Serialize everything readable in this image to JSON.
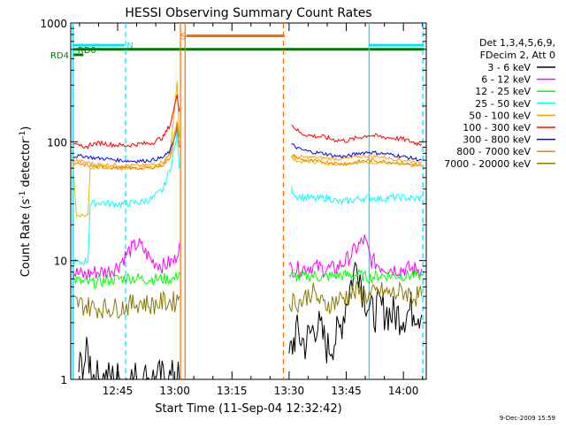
{
  "chart_data": {
    "type": "line",
    "title": "HESSI Observing Summary Count Rates",
    "xlabel": "Start Time (11-Sep-04 12:32:42)",
    "ylabel_main": "Count Rate (s",
    "ylabel_sup1": "-1",
    "ylabel_mid": " detector",
    "ylabel_sup2": "-1",
    "ylabel_end": ")",
    "footer": "9-Dec-2009 15:59",
    "x_range_min": [
      12.55,
      14.1
    ],
    "y_range": [
      1,
      1000
    ],
    "y_scale": "log",
    "x_ticks": [
      {
        "value": 12.75,
        "label": "12:45"
      },
      {
        "value": 13.0,
        "label": "13:00"
      },
      {
        "value": 13.25,
        "label": "13:15"
      },
      {
        "value": 13.5,
        "label": "13:30"
      },
      {
        "value": 13.75,
        "label": "13:45"
      },
      {
        "value": 14.0,
        "label": "14:00"
      }
    ],
    "y_ticks": [
      {
        "value": 1,
        "label": "1"
      },
      {
        "value": 10,
        "label": "10"
      },
      {
        "value": 100,
        "label": "100"
      },
      {
        "value": 1000,
        "label": "1000"
      }
    ],
    "legend_header": [
      "Det 1,3,4,5,6,9,",
      "FDecim 2, Att 0"
    ],
    "legend_position": "right",
    "series": [
      {
        "name": "3 - 6 keV",
        "color": "#000000",
        "seg1": [
          [
            12.58,
            1.2
          ],
          [
            12.62,
            1.6
          ],
          [
            12.65,
            1.0
          ],
          [
            12.7,
            1.0
          ],
          [
            12.8,
            1.0
          ],
          [
            12.9,
            1.0
          ],
          [
            13.0,
            1.0
          ],
          [
            13.02,
            1.0
          ]
        ],
        "seg2": [
          [
            13.5,
            1.5
          ],
          [
            13.53,
            2.5
          ],
          [
            13.57,
            2.0
          ],
          [
            13.62,
            3.0
          ],
          [
            13.67,
            1.8
          ],
          [
            13.72,
            2.5
          ],
          [
            13.76,
            5.5
          ],
          [
            13.8,
            10.0
          ],
          [
            13.82,
            6.0
          ],
          [
            13.86,
            3.5
          ],
          [
            13.9,
            4.0
          ],
          [
            13.95,
            3.5
          ],
          [
            14.0,
            3.5
          ],
          [
            14.05,
            4.0
          ],
          [
            14.08,
            3.5
          ]
        ]
      },
      {
        "name": "6 - 12 keV",
        "color": "#ff00ff",
        "seg1": [
          [
            12.555,
            8
          ],
          [
            12.6,
            7.5
          ],
          [
            12.65,
            8
          ],
          [
            12.7,
            8
          ],
          [
            12.75,
            9
          ],
          [
            12.8,
            12
          ],
          [
            12.84,
            14
          ],
          [
            12.9,
            10
          ],
          [
            12.95,
            9
          ],
          [
            13.0,
            10
          ],
          [
            13.02,
            14
          ]
        ],
        "seg2": [
          [
            13.5,
            8.5
          ],
          [
            13.55,
            8.5
          ],
          [
            13.6,
            9
          ],
          [
            13.65,
            8.5
          ],
          [
            13.7,
            8.5
          ],
          [
            13.75,
            10
          ],
          [
            13.8,
            13
          ],
          [
            13.83,
            15
          ],
          [
            13.86,
            10
          ],
          [
            13.9,
            9
          ],
          [
            13.95,
            8.5
          ],
          [
            14.0,
            8.5
          ],
          [
            14.05,
            8.5
          ],
          [
            14.08,
            8.5
          ]
        ]
      },
      {
        "name": "12 - 25 keV",
        "color": "#00ff00",
        "seg1": [
          [
            12.555,
            7
          ],
          [
            12.6,
            6.5
          ],
          [
            12.65,
            6.5
          ],
          [
            12.7,
            6.8
          ],
          [
            12.75,
            7
          ],
          [
            12.8,
            7.2
          ],
          [
            12.85,
            7
          ],
          [
            12.9,
            7
          ],
          [
            12.95,
            7
          ],
          [
            13.0,
            7
          ],
          [
            13.02,
            8
          ]
        ],
        "seg2": [
          [
            13.5,
            7.5
          ],
          [
            13.55,
            7.2
          ],
          [
            13.6,
            7.5
          ],
          [
            13.65,
            7.2
          ],
          [
            13.7,
            7.5
          ],
          [
            13.75,
            7.5
          ],
          [
            13.8,
            7.6
          ],
          [
            13.85,
            7.2
          ],
          [
            13.9,
            7.5
          ],
          [
            13.95,
            7.5
          ],
          [
            14.0,
            7.5
          ],
          [
            14.05,
            7.5
          ],
          [
            14.08,
            7.5
          ]
        ]
      },
      {
        "name": "25 - 50 keV",
        "color": "#00ffff",
        "seg1": [
          [
            12.555,
            10
          ],
          [
            12.58,
            9.5
          ],
          [
            12.62,
            10
          ],
          [
            12.63,
            30
          ],
          [
            12.68,
            31
          ],
          [
            12.72,
            30
          ],
          [
            12.78,
            30
          ],
          [
            12.85,
            31
          ],
          [
            12.9,
            33
          ],
          [
            12.95,
            40
          ],
          [
            12.98,
            60
          ],
          [
            13.0,
            90
          ],
          [
            13.01,
            120
          ],
          [
            13.02,
            60
          ]
        ],
        "seg2": [
          [
            13.51,
            40
          ],
          [
            13.53,
            35
          ],
          [
            13.57,
            34
          ],
          [
            13.62,
            33
          ],
          [
            13.67,
            34
          ],
          [
            13.72,
            31
          ],
          [
            13.77,
            32
          ],
          [
            13.8,
            33
          ],
          [
            13.85,
            34
          ],
          [
            13.9,
            33
          ],
          [
            13.95,
            34
          ],
          [
            14.0,
            34
          ],
          [
            14.05,
            33
          ],
          [
            14.08,
            34
          ]
        ]
      },
      {
        "name": "50 - 100 keV",
        "color": "#ffa000",
        "seg1": [
          [
            12.555,
            70
          ],
          [
            12.6,
            68
          ],
          [
            12.65,
            65
          ],
          [
            12.7,
            64
          ],
          [
            12.75,
            64
          ],
          [
            12.8,
            63
          ],
          [
            12.85,
            63
          ],
          [
            12.9,
            64
          ],
          [
            12.95,
            68
          ],
          [
            12.98,
            80
          ],
          [
            13.0,
            120
          ],
          [
            13.01,
            150
          ],
          [
            13.02,
            110
          ]
        ],
        "seg2": [
          [
            13.51,
            75
          ],
          [
            13.55,
            74
          ],
          [
            13.6,
            74
          ],
          [
            13.65,
            73
          ],
          [
            13.7,
            72
          ],
          [
            13.75,
            72
          ],
          [
            13.8,
            75
          ],
          [
            13.85,
            76
          ],
          [
            13.9,
            75
          ],
          [
            13.95,
            72
          ],
          [
            14.0,
            70
          ],
          [
            14.05,
            68
          ],
          [
            14.08,
            67
          ]
        ]
      },
      {
        "name": "100 - 300 keV",
        "color": "#ff0000",
        "seg1": [
          [
            12.555,
            100
          ],
          [
            12.58,
            98
          ],
          [
            12.6,
            85
          ],
          [
            12.63,
            95
          ],
          [
            12.68,
            98
          ],
          [
            12.72,
            95
          ],
          [
            12.78,
            93
          ],
          [
            12.85,
            96
          ],
          [
            12.9,
            98
          ],
          [
            12.95,
            110
          ],
          [
            12.98,
            140
          ],
          [
            13.0,
            200
          ],
          [
            13.01,
            260
          ],
          [
            13.02,
            180
          ]
        ],
        "seg2": [
          [
            13.51,
            140
          ],
          [
            13.55,
            118
          ],
          [
            13.6,
            112
          ],
          [
            13.65,
            110
          ],
          [
            13.7,
            104
          ],
          [
            13.75,
            102
          ],
          [
            13.8,
            108
          ],
          [
            13.85,
            114
          ],
          [
            13.9,
            110
          ],
          [
            13.95,
            108
          ],
          [
            14.0,
            105
          ],
          [
            14.05,
            98
          ],
          [
            14.08,
            96
          ]
        ]
      },
      {
        "name": "300 - 800 keV",
        "color": "#0000ff",
        "seg1": [
          [
            12.555,
            75
          ],
          [
            12.6,
            76
          ],
          [
            12.65,
            73
          ],
          [
            12.7,
            72
          ],
          [
            12.75,
            70
          ],
          [
            12.8,
            69
          ],
          [
            12.85,
            69
          ],
          [
            12.9,
            70
          ],
          [
            12.95,
            74
          ],
          [
            12.98,
            84
          ],
          [
            13.0,
            110
          ],
          [
            13.01,
            140
          ],
          [
            13.02,
            90
          ]
        ],
        "seg2": [
          [
            13.51,
            95
          ],
          [
            13.55,
            86
          ],
          [
            13.6,
            82
          ],
          [
            13.65,
            80
          ],
          [
            13.7,
            76
          ],
          [
            13.75,
            75
          ],
          [
            13.8,
            80
          ],
          [
            13.85,
            82
          ],
          [
            13.9,
            80
          ],
          [
            13.95,
            78
          ],
          [
            14.0,
            75
          ],
          [
            14.05,
            72
          ],
          [
            14.08,
            70
          ]
        ]
      },
      {
        "name": "800 - 7000 keV",
        "color": "#ff8000",
        "seg1": [
          [
            12.555,
            65
          ],
          [
            12.6,
            64
          ],
          [
            12.65,
            62
          ],
          [
            12.7,
            61
          ],
          [
            12.75,
            60
          ],
          [
            12.8,
            60
          ],
          [
            12.85,
            60
          ],
          [
            12.9,
            61
          ],
          [
            12.95,
            64
          ],
          [
            12.98,
            74
          ],
          [
            13.0,
            110
          ],
          [
            13.01,
            140
          ],
          [
            13.02,
            90
          ]
        ],
        "seg2": [
          [
            13.51,
            78
          ],
          [
            13.55,
            71
          ],
          [
            13.6,
            69
          ],
          [
            13.65,
            68
          ],
          [
            13.7,
            66
          ],
          [
            13.75,
            65
          ],
          [
            13.8,
            68
          ],
          [
            13.85,
            70
          ],
          [
            13.9,
            69
          ],
          [
            13.95,
            67
          ],
          [
            14.0,
            66
          ],
          [
            14.05,
            64
          ],
          [
            14.08,
            63
          ]
        ]
      },
      {
        "name": "7000 - 20000 keV",
        "color": "#8c7a00",
        "seg1": [
          [
            12.555,
            4.5
          ],
          [
            12.6,
            4.2
          ],
          [
            12.65,
            4.0
          ],
          [
            12.7,
            4.0
          ],
          [
            12.75,
            4.0
          ],
          [
            12.8,
            4.2
          ],
          [
            12.85,
            4.5
          ],
          [
            12.9,
            4.2
          ],
          [
            12.95,
            4.5
          ],
          [
            13.0,
            4.5
          ],
          [
            13.02,
            5
          ]
        ],
        "seg2": [
          [
            13.5,
            4.5
          ],
          [
            13.55,
            4.5
          ],
          [
            13.6,
            5.5
          ],
          [
            13.65,
            4.2
          ],
          [
            13.7,
            4.5
          ],
          [
            13.75,
            5
          ],
          [
            13.8,
            5.5
          ],
          [
            13.85,
            5
          ],
          [
            13.9,
            5.5
          ],
          [
            13.95,
            5.2
          ],
          [
            14.0,
            5.5
          ],
          [
            14.05,
            5
          ],
          [
            14.08,
            5
          ]
        ]
      }
    ],
    "extra_yellow": {
      "color": "#d4c000",
      "seg1": [
        [
          12.555,
          65
        ],
        [
          12.57,
          24
        ],
        [
          12.62,
          24
        ],
        [
          12.63,
          60
        ],
        [
          12.7,
          62
        ],
        [
          12.8,
          60
        ],
        [
          12.9,
          60
        ],
        [
          12.95,
          64
        ],
        [
          12.98,
          80
        ],
        [
          13.0,
          200
        ],
        [
          13.01,
          330
        ],
        [
          13.02,
          110
        ]
      ],
      "seg2": [
        [
          13.51,
          72
        ],
        [
          13.55,
          68
        ],
        [
          13.6,
          68
        ],
        [
          13.7,
          65
        ],
        [
          13.8,
          67
        ],
        [
          13.9,
          67
        ],
        [
          14.0,
          64
        ],
        [
          14.08,
          62
        ]
      ]
    },
    "flags": [
      {
        "label": "N",
        "color": "#00e0ff",
        "y": 650,
        "segments": [
          [
            12.555,
            12.78
          ],
          [
            13.85,
            14.09
          ]
        ]
      },
      {
        "label": "S",
        "color": "#ff6a00",
        "y": 780,
        "segments": [
          [
            13.05,
            13.48
          ]
        ]
      },
      {
        "label": "RD0",
        "color": "#007800",
        "y": 600,
        "segments": [
          [
            12.555,
            12.57
          ],
          [
            12.57,
            14.09
          ]
        ]
      },
      {
        "label": "RD4",
        "color": "#007800",
        "y": 540,
        "segments": [
          [
            12.555,
            12.6
          ]
        ]
      }
    ],
    "vlines": [
      {
        "x": 12.555,
        "color": "#00e0ff",
        "style": "solid"
      },
      {
        "x": 12.785,
        "color": "#00e0ff",
        "style": "dashed"
      },
      {
        "x": 13.025,
        "color": "#ff6a00",
        "style": "solid"
      },
      {
        "x": 13.045,
        "color": "#ff6a00",
        "style": "solid"
      },
      {
        "x": 13.475,
        "color": "#ff6a00",
        "style": "dashed"
      },
      {
        "x": 13.85,
        "color": "#00e0ff",
        "style": "solid"
      },
      {
        "x": 14.085,
        "color": "#00e0ff",
        "style": "dashed"
      }
    ]
  }
}
